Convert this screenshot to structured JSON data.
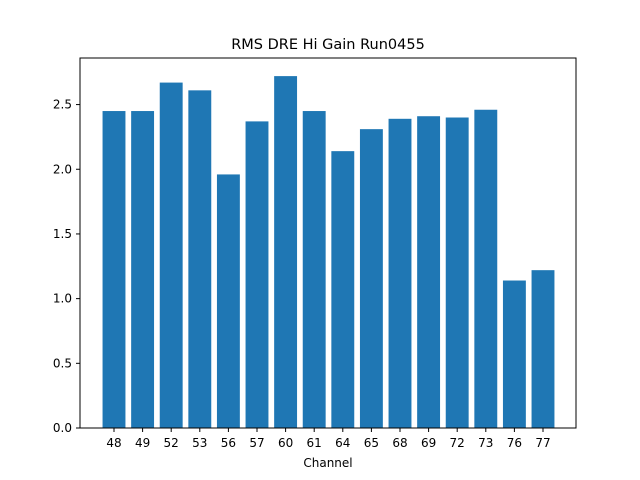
{
  "chart_data": {
    "type": "bar",
    "title": "RMS DRE Hi Gain Run0455",
    "xlabel": "Channel",
    "ylabel": "",
    "categories": [
      "48",
      "49",
      "52",
      "53",
      "56",
      "57",
      "60",
      "61",
      "64",
      "65",
      "68",
      "69",
      "72",
      "73",
      "76",
      "77"
    ],
    "values": [
      2.45,
      2.45,
      2.67,
      2.61,
      1.96,
      2.37,
      2.72,
      2.45,
      2.14,
      2.31,
      2.39,
      2.41,
      2.4,
      2.46,
      1.14,
      1.22
    ],
    "ylim": [
      0,
      2.86
    ],
    "yticks": [
      "0.0",
      "0.5",
      "1.0",
      "1.5",
      "2.0",
      "2.5"
    ],
    "bar_color": "#1f77b4",
    "grid": false,
    "legend": "none"
  }
}
